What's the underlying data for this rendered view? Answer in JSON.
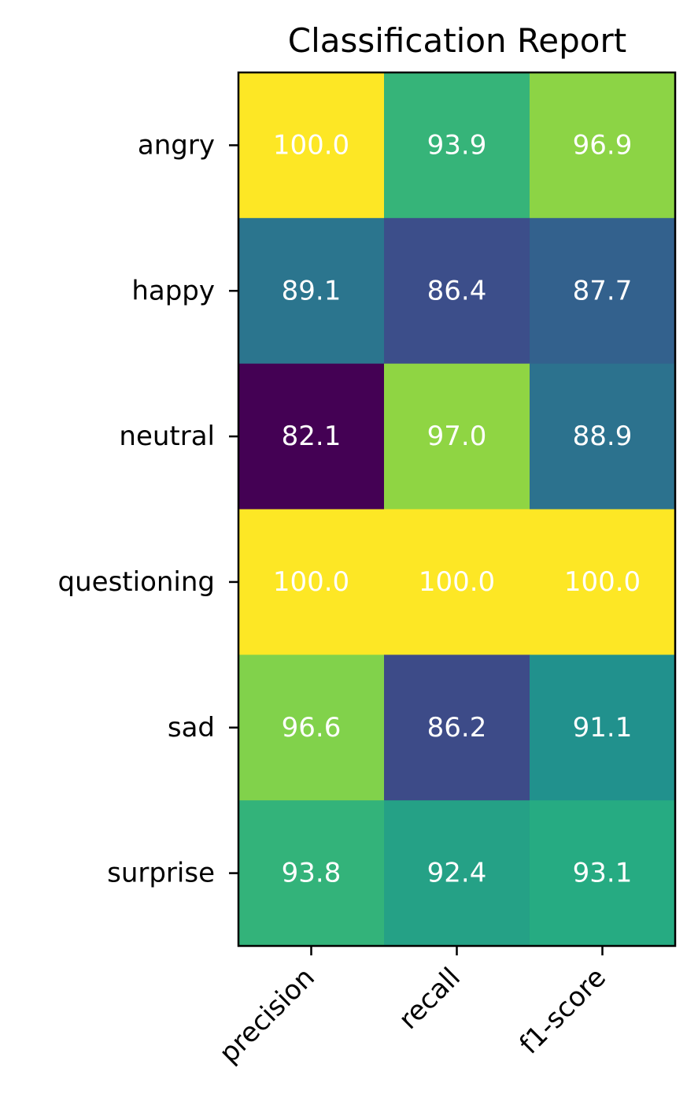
{
  "chart_data": {
    "type": "heatmap",
    "title": "Classification Report",
    "xlabel": "",
    "ylabel": "",
    "x_categories": [
      "precision",
      "recall",
      "f1-score"
    ],
    "y_categories": [
      "angry",
      "happy",
      "neutral",
      "questioning",
      "sad",
      "surprise"
    ],
    "values": [
      [
        100.0,
        93.9,
        96.9
      ],
      [
        89.1,
        86.4,
        87.7
      ],
      [
        82.1,
        97.0,
        88.9
      ],
      [
        100.0,
        100.0,
        100.0
      ],
      [
        96.6,
        86.2,
        91.1
      ],
      [
        93.8,
        92.4,
        93.1
      ]
    ],
    "cell_labels": [
      [
        "100.0",
        "93.9",
        "96.9"
      ],
      [
        "89.1",
        "86.4",
        "87.7"
      ],
      [
        "82.1",
        "97.0",
        "88.9"
      ],
      [
        "100.0",
        "100.0",
        "100.0"
      ],
      [
        "96.6",
        "86.2",
        "91.1"
      ],
      [
        "93.8",
        "92.4",
        "93.1"
      ]
    ],
    "colormap": "viridis",
    "value_range": [
      82.1,
      100.0
    ],
    "cell_label_color": "#ffffff",
    "x_tick_rotation": "45 degrees, right-aligned",
    "grid": false,
    "legend": "none"
  }
}
